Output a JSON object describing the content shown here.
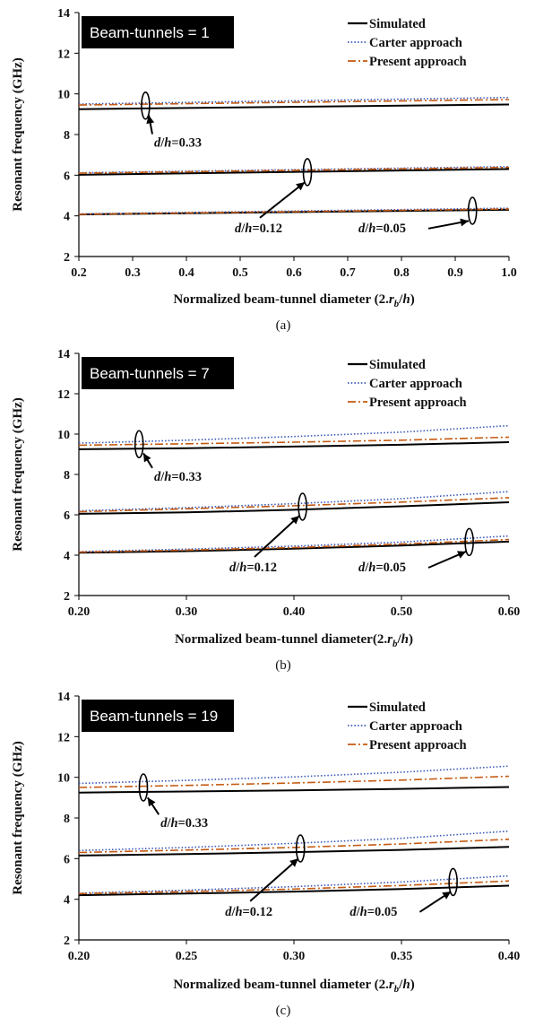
{
  "chart_data": [
    {
      "type": "line",
      "title": "Beam-tunnels = 1",
      "caption": "(a)",
      "xlabel_main": "Normalized beam-tunnel diameter (2.",
      "xlabel_r": "r",
      "xlabel_sub": "b",
      "xlabel_tail": "/",
      "xlabel_h": "h",
      "xlabel_close": ")",
      "ylabel": "Resonant frequency (GHz)",
      "xlim": [
        0.2,
        1.0
      ],
      "ylim": [
        2,
        14
      ],
      "xticks": [
        "0.2",
        "0.3",
        "0.4",
        "0.5",
        "0.6",
        "0.7",
        "0.8",
        "0.9",
        "1.0"
      ],
      "xtick_values": [
        0.2,
        0.3,
        0.4,
        0.5,
        0.6,
        0.7,
        0.8,
        0.9,
        1.0
      ],
      "yticks": [
        "2",
        "4",
        "6",
        "8",
        "10",
        "12",
        "14"
      ],
      "ytick_values": [
        2,
        4,
        6,
        8,
        10,
        12,
        14
      ],
      "legend_position": "top-right",
      "series": [
        {
          "name": "Simulated",
          "style": "solid",
          "color": "#000000",
          "groups": [
            {
              "x": [
                0.2,
                1.0
              ],
              "y": [
                9.25,
                9.48
              ]
            },
            {
              "x": [
                0.2,
                1.0
              ],
              "y": [
                6.02,
                6.3
              ]
            },
            {
              "x": [
                0.2,
                1.0
              ],
              "y": [
                4.07,
                4.3
              ]
            }
          ]
        },
        {
          "name": "Carter approach",
          "style": "dotted",
          "color": "#3a57b8",
          "groups": [
            {
              "x": [
                0.2,
                1.0
              ],
              "y": [
                9.5,
                9.82
              ]
            },
            {
              "x": [
                0.2,
                1.0
              ],
              "y": [
                6.12,
                6.42
              ]
            },
            {
              "x": [
                0.2,
                1.0
              ],
              "y": [
                4.1,
                4.38
              ]
            }
          ]
        },
        {
          "name": "Present approach",
          "style": "dashdot",
          "color": "#c55a11",
          "groups": [
            {
              "x": [
                0.2,
                1.0
              ],
              "y": [
                9.45,
                9.72
              ]
            },
            {
              "x": [
                0.2,
                1.0
              ],
              "y": [
                6.1,
                6.38
              ]
            },
            {
              "x": [
                0.2,
                1.0
              ],
              "y": [
                4.08,
                4.34
              ]
            }
          ]
        }
      ],
      "annotations": [
        {
          "d": "d",
          "slash": "/",
          "h": "h",
          "value": "=0.33",
          "ellipse": [
            0.324,
            9.42
          ],
          "text_at": [
            0.34,
            7.4
          ],
          "arrow_to": [
            0.33,
            8.95
          ]
        },
        {
          "d": "d",
          "slash": "/",
          "h": "h",
          "value": "=0.12",
          "ellipse": [
            0.625,
            6.15
          ],
          "text_at": [
            0.49,
            3.2
          ],
          "arrow_to": [
            0.62,
            5.65
          ]
        },
        {
          "d": "d",
          "slash": "/",
          "h": "h",
          "value": "=0.05",
          "ellipse": [
            0.932,
            4.25
          ],
          "text_at": [
            0.72,
            3.2
          ],
          "arrow_to": [
            0.925,
            3.75
          ]
        }
      ]
    },
    {
      "type": "line",
      "title": "Beam-tunnels = 7",
      "caption": "(b)",
      "xlabel_main": "Normalized beam-tunnel diameter(2.",
      "xlabel_r": "r",
      "xlabel_sub": "b",
      "xlabel_tail": "/",
      "xlabel_h": "h",
      "xlabel_close": ")",
      "ylabel": "Resonant frequency (GHz)",
      "xlim": [
        0.2,
        0.6
      ],
      "ylim": [
        2,
        14
      ],
      "xticks": [
        "0.20",
        "0.30",
        "0.40",
        "0.50",
        "0.60"
      ],
      "xtick_values": [
        0.2,
        0.3,
        0.4,
        0.5,
        0.6
      ],
      "yticks": [
        "2",
        "4",
        "6",
        "8",
        "10",
        "12",
        "14"
      ],
      "ytick_values": [
        2,
        4,
        6,
        8,
        10,
        12,
        14
      ],
      "legend_position": "top-right",
      "series": [
        {
          "name": "Simulated",
          "style": "solid",
          "color": "#000000",
          "groups": [
            {
              "x": [
                0.2,
                0.3,
                0.4,
                0.5,
                0.6
              ],
              "y": [
                9.25,
                9.3,
                9.38,
                9.47,
                9.6
              ]
            },
            {
              "x": [
                0.2,
                0.3,
                0.4,
                0.5,
                0.6
              ],
              "y": [
                6.05,
                6.12,
                6.25,
                6.42,
                6.62
              ]
            },
            {
              "x": [
                0.2,
                0.3,
                0.4,
                0.5,
                0.6
              ],
              "y": [
                4.12,
                4.2,
                4.32,
                4.48,
                4.67
              ]
            }
          ]
        },
        {
          "name": "Carter approach",
          "style": "dotted",
          "color": "#3a57b8",
          "groups": [
            {
              "x": [
                0.2,
                0.3,
                0.4,
                0.5,
                0.6
              ],
              "y": [
                9.55,
                9.7,
                9.88,
                10.1,
                10.42
              ]
            },
            {
              "x": [
                0.2,
                0.3,
                0.4,
                0.5,
                0.6
              ],
              "y": [
                6.2,
                6.35,
                6.55,
                6.8,
                7.15
              ]
            },
            {
              "x": [
                0.2,
                0.3,
                0.4,
                0.5,
                0.6
              ],
              "y": [
                4.18,
                4.3,
                4.45,
                4.65,
                4.95
              ]
            }
          ]
        },
        {
          "name": "Present approach",
          "style": "dashdot",
          "color": "#c55a11",
          "groups": [
            {
              "x": [
                0.2,
                0.3,
                0.4,
                0.5,
                0.6
              ],
              "y": [
                9.45,
                9.52,
                9.6,
                9.7,
                9.85
              ]
            },
            {
              "x": [
                0.2,
                0.3,
                0.4,
                0.5,
                0.6
              ],
              "y": [
                6.15,
                6.3,
                6.45,
                6.63,
                6.85
              ]
            },
            {
              "x": [
                0.2,
                0.3,
                0.4,
                0.5,
                0.6
              ],
              "y": [
                4.15,
                4.25,
                4.38,
                4.55,
                4.78
              ]
            }
          ]
        }
      ],
      "annotations": [
        {
          "d": "d",
          "slash": "/",
          "h": "h",
          "value": "=0.33",
          "ellipse": [
            0.256,
            9.5
          ],
          "text_at": [
            0.27,
            7.7
          ],
          "arrow_to": [
            0.26,
            9.05
          ]
        },
        {
          "d": "d",
          "slash": "/",
          "h": "h",
          "value": "=0.12",
          "ellipse": [
            0.408,
            6.4
          ],
          "text_at": [
            0.34,
            3.2
          ],
          "arrow_to": [
            0.405,
            5.95
          ]
        },
        {
          "d": "d",
          "slash": "/",
          "h": "h",
          "value": "=0.05",
          "ellipse": [
            0.563,
            4.65
          ],
          "text_at": [
            0.46,
            3.2
          ],
          "arrow_to": [
            0.56,
            4.18
          ]
        }
      ]
    },
    {
      "type": "line",
      "title": "Beam-tunnels = 19",
      "caption": "(c)",
      "xlabel_main": "Normalized beam-tunnel diameter (2.",
      "xlabel_r": "r",
      "xlabel_sub": "b",
      "xlabel_tail": "/",
      "xlabel_h": "h",
      "xlabel_close": ")",
      "ylabel": "Resonant frequency (GHz)",
      "xlim": [
        0.2,
        0.4
      ],
      "ylim": [
        2,
        14
      ],
      "xticks": [
        "0.20",
        "0.25",
        "0.30",
        "0.35",
        "0.40"
      ],
      "xtick_values": [
        0.2,
        0.25,
        0.3,
        0.35,
        0.4
      ],
      "yticks": [
        "2",
        "4",
        "6",
        "8",
        "10",
        "12",
        "14"
      ],
      "ytick_values": [
        2,
        4,
        6,
        8,
        10,
        12,
        14
      ],
      "legend_position": "top-right",
      "series": [
        {
          "name": "Simulated",
          "style": "solid",
          "color": "#000000",
          "groups": [
            {
              "x": [
                0.2,
                0.25,
                0.3,
                0.35,
                0.4
              ],
              "y": [
                9.25,
                9.3,
                9.36,
                9.43,
                9.52
              ]
            },
            {
              "x": [
                0.2,
                0.25,
                0.3,
                0.35,
                0.4
              ],
              "y": [
                6.15,
                6.22,
                6.32,
                6.43,
                6.58
              ]
            },
            {
              "x": [
                0.2,
                0.25,
                0.3,
                0.35,
                0.4
              ],
              "y": [
                4.2,
                4.28,
                4.38,
                4.5,
                4.67
              ]
            }
          ]
        },
        {
          "name": "Carter approach",
          "style": "dotted",
          "color": "#3a57b8",
          "groups": [
            {
              "x": [
                0.2,
                0.25,
                0.3,
                0.35,
                0.4
              ],
              "y": [
                9.7,
                9.85,
                10.02,
                10.25,
                10.55
              ]
            },
            {
              "x": [
                0.2,
                0.25,
                0.3,
                0.35,
                0.4
              ],
              "y": [
                6.4,
                6.55,
                6.75,
                7.0,
                7.35
              ]
            },
            {
              "x": [
                0.2,
                0.25,
                0.3,
                0.35,
                0.4
              ],
              "y": [
                4.3,
                4.45,
                4.62,
                4.85,
                5.15
              ]
            }
          ]
        },
        {
          "name": "Present approach",
          "style": "dashdot",
          "color": "#c55a11",
          "groups": [
            {
              "x": [
                0.2,
                0.25,
                0.3,
                0.35,
                0.4
              ],
              "y": [
                9.5,
                9.6,
                9.72,
                9.86,
                10.05
              ]
            },
            {
              "x": [
                0.2,
                0.25,
                0.3,
                0.35,
                0.4
              ],
              "y": [
                6.3,
                6.42,
                6.55,
                6.72,
                6.95
              ]
            },
            {
              "x": [
                0.2,
                0.25,
                0.3,
                0.35,
                0.4
              ],
              "y": [
                4.28,
                4.38,
                4.5,
                4.68,
                4.9
              ]
            }
          ]
        }
      ],
      "annotations": [
        {
          "d": "d",
          "slash": "/",
          "h": "h",
          "value": "=0.33",
          "ellipse": [
            0.23,
            9.5
          ],
          "text_at": [
            0.238,
            7.55
          ],
          "arrow_to": [
            0.232,
            9.0
          ]
        },
        {
          "d": "d",
          "slash": "/",
          "h": "h",
          "value": "=0.12",
          "ellipse": [
            0.303,
            6.5
          ],
          "text_at": [
            0.268,
            3.2
          ],
          "arrow_to": [
            0.302,
            6.0
          ]
        },
        {
          "d": "d",
          "slash": "/",
          "h": "h",
          "value": "=0.05",
          "ellipse": [
            0.374,
            4.85
          ],
          "text_at": [
            0.326,
            3.2
          ],
          "arrow_to": [
            0.373,
            4.38
          ]
        }
      ]
    }
  ]
}
